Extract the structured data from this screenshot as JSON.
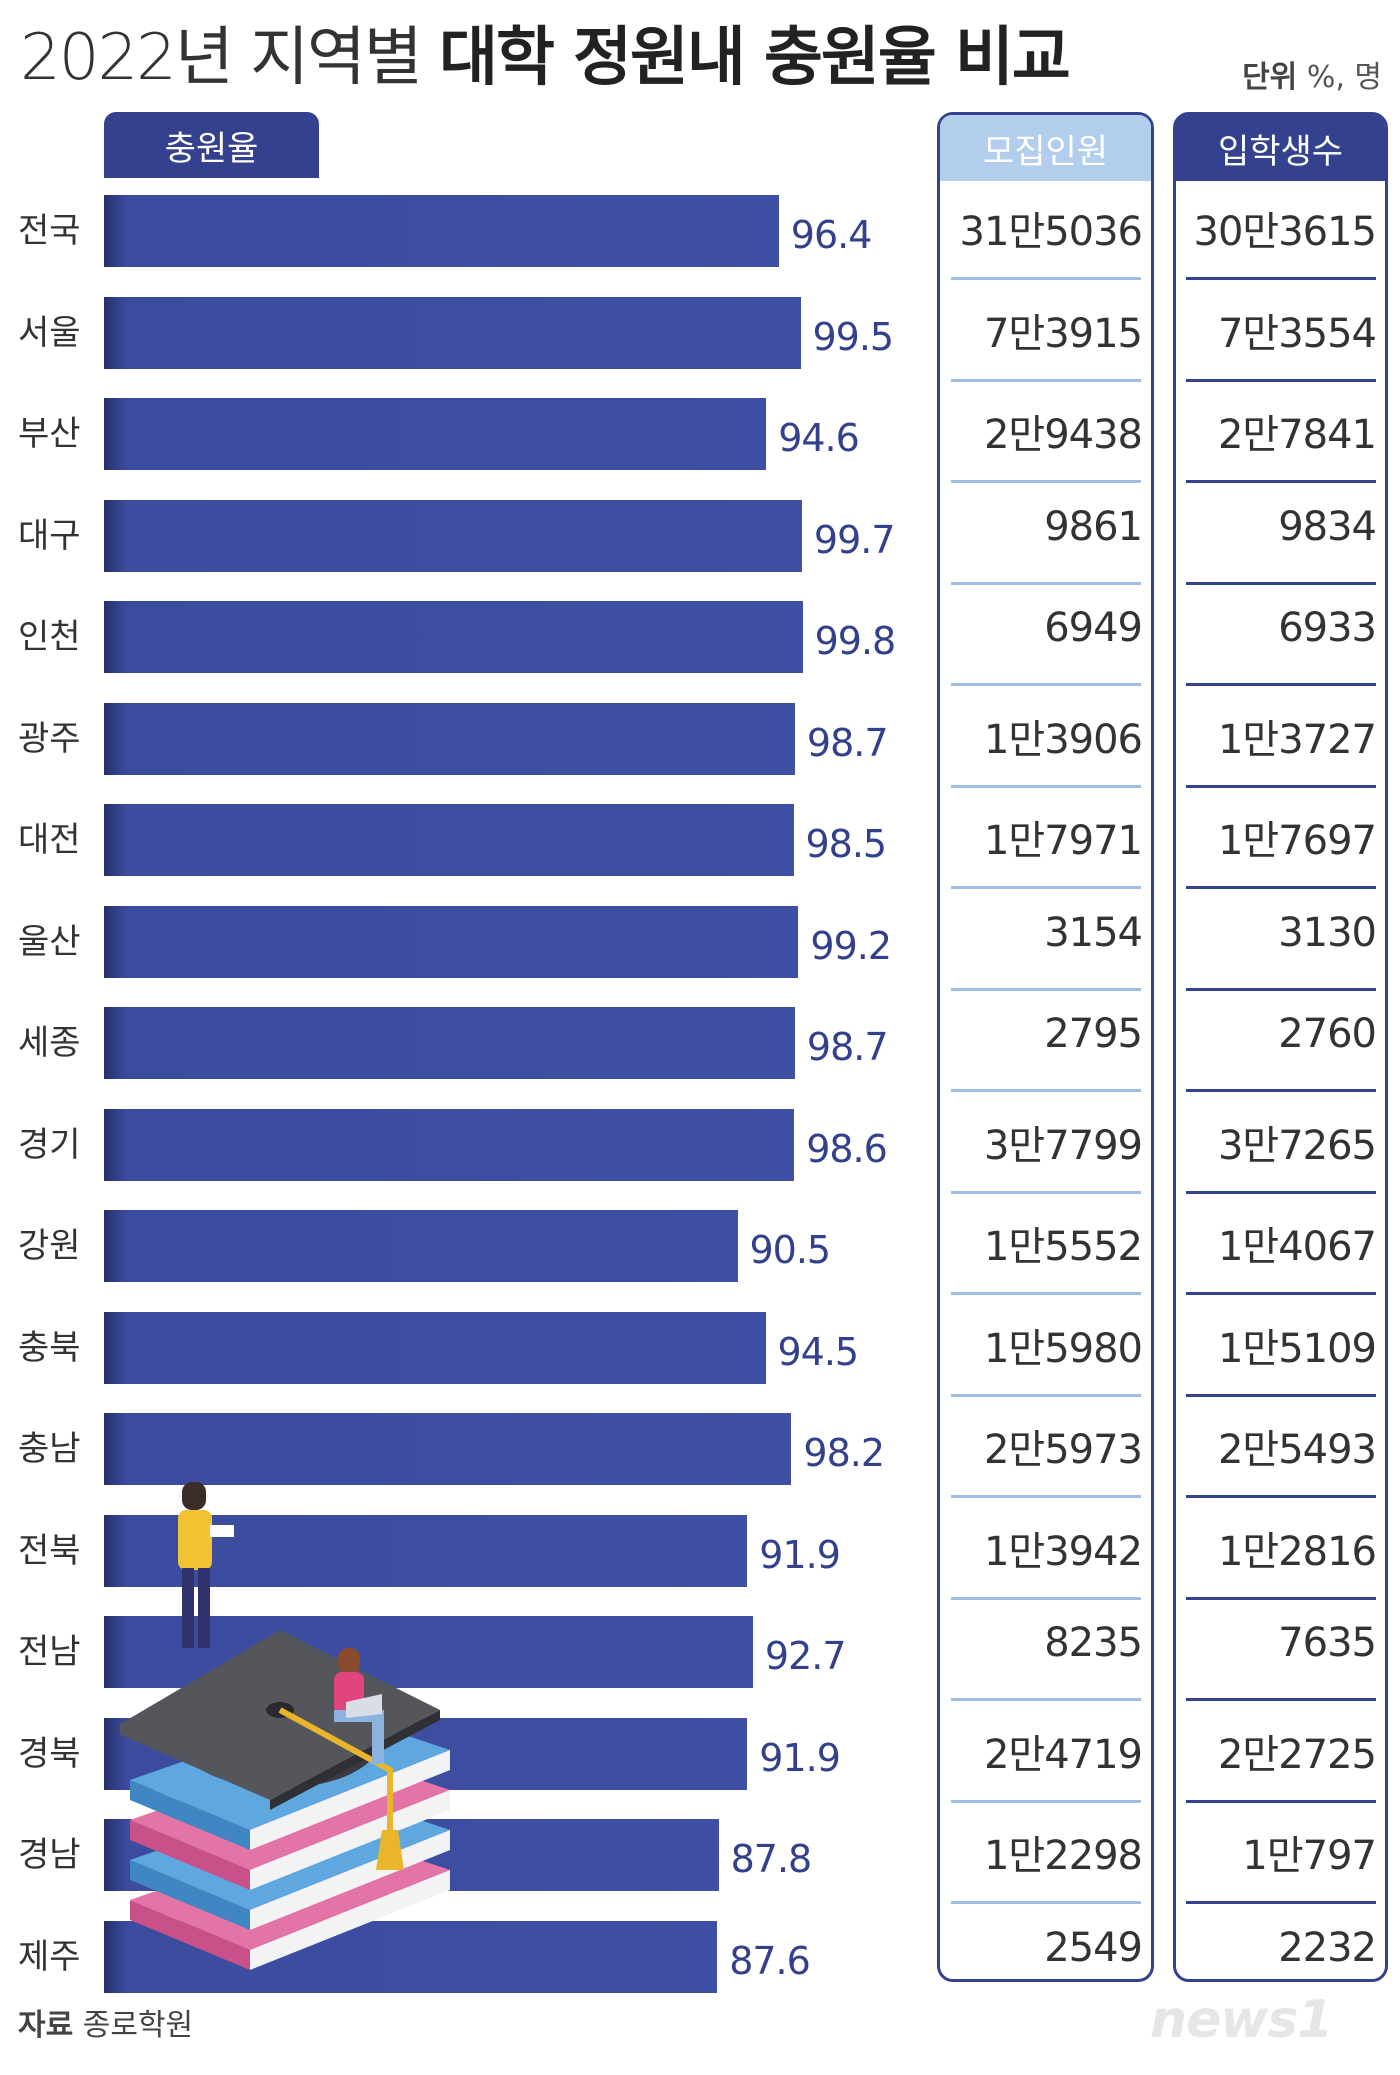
{
  "title": {
    "light": "2022년 지역별 ",
    "bold": "대학 정원내 충원율 비교"
  },
  "unit": {
    "label": "단위",
    "value": "%, 명"
  },
  "headers": {
    "rate": "충원율",
    "recruit": "모집인원",
    "admit": "입학생수"
  },
  "source": {
    "label": "자료",
    "value": "종로학원"
  },
  "logo": "news1",
  "colors": {
    "bar": "#3f4fa3",
    "header_dark": "#34418f",
    "header_light": "#b3cdec"
  },
  "chart_data": {
    "type": "bar",
    "orientation": "horizontal",
    "title": "2022년 지역별 대학 정원내 충원율 비교",
    "categories": [
      "전국",
      "서울",
      "부산",
      "대구",
      "인천",
      "광주",
      "대전",
      "울산",
      "세종",
      "경기",
      "강원",
      "충북",
      "충남",
      "전북",
      "전남",
      "경북",
      "경남",
      "제주"
    ],
    "values": [
      96.4,
      99.5,
      94.6,
      99.7,
      99.8,
      98.7,
      98.5,
      99.2,
      98.7,
      98.6,
      90.5,
      94.5,
      98.2,
      91.9,
      92.7,
      91.9,
      87.8,
      87.6
    ],
    "value_labels": [
      "96.4",
      "99.5",
      "94.6",
      "99.7",
      "99.8",
      "98.7",
      "98.5",
      "99.2",
      "98.7",
      "98.6",
      "90.5",
      "94.5",
      "98.2",
      "91.9",
      "92.7",
      "91.9",
      "87.8",
      "87.6"
    ],
    "recruit": [
      "31만5036",
      "7만3915",
      "2만9438",
      "9861",
      "6949",
      "1만3906",
      "1만7971",
      "3154",
      "2795",
      "3만7799",
      "1만5552",
      "1만5980",
      "2만5973",
      "1만3942",
      "8235",
      "2만4719",
      "1만2298",
      "2549"
    ],
    "admit": [
      "30만3615",
      "7만3554",
      "2만7841",
      "9834",
      "6933",
      "1만3727",
      "1만7697",
      "3130",
      "2760",
      "3만7265",
      "1만4067",
      "1만5109",
      "2만5493",
      "1만2816",
      "7635",
      "2만2725",
      "1만797",
      "2232"
    ]
  }
}
